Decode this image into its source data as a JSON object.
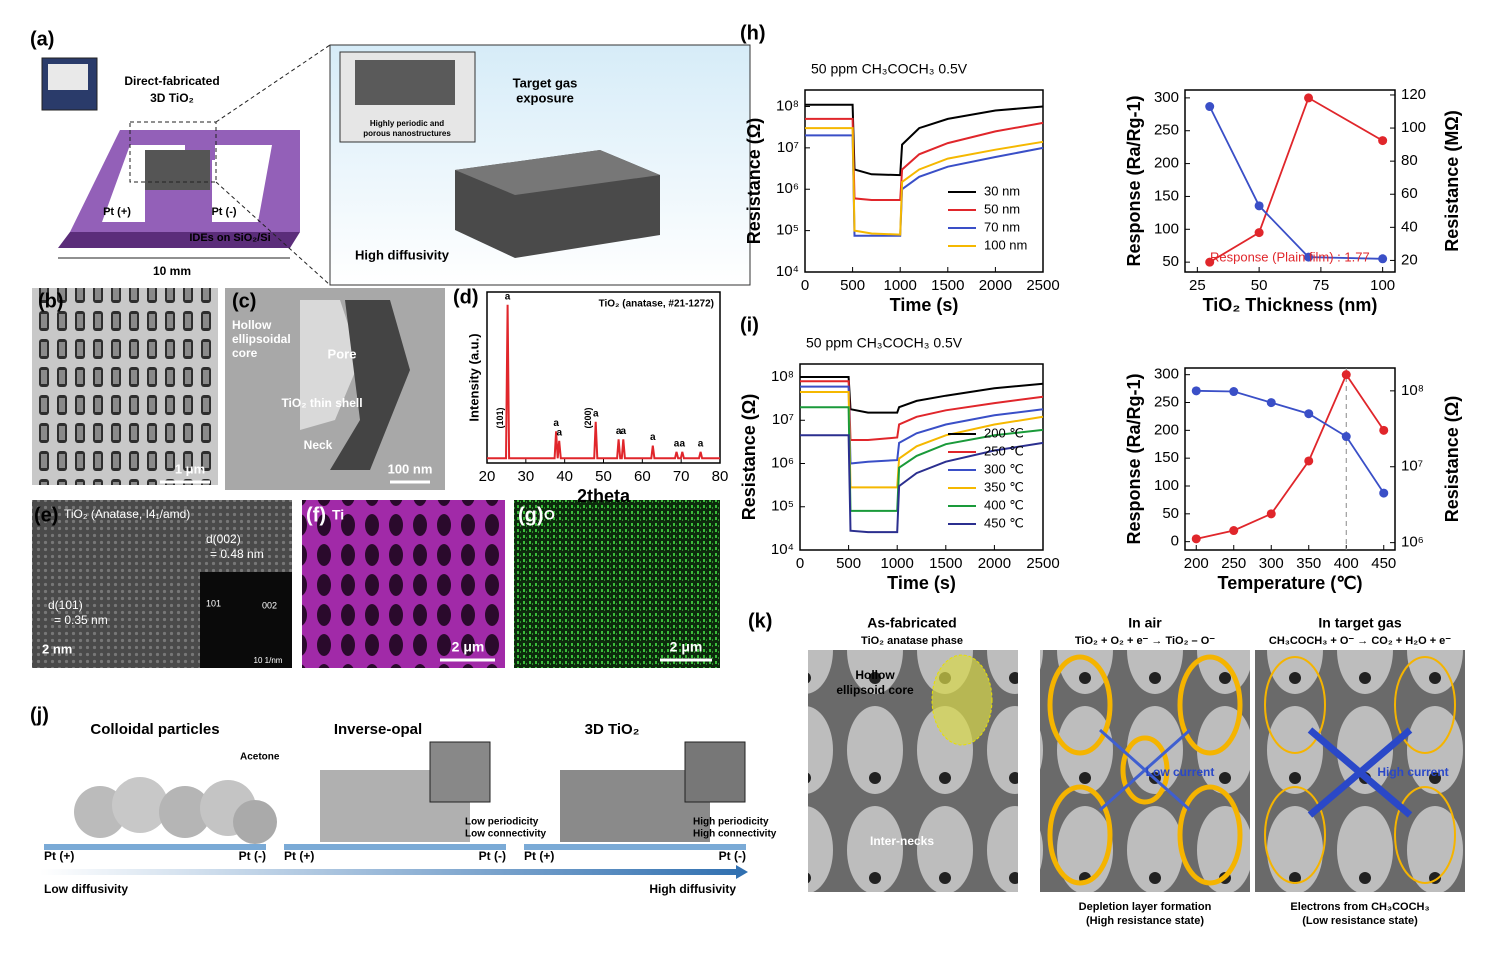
{
  "panels": {
    "a": {
      "label": "(a)",
      "device": [
        "Direct-fabricated",
        "3D TiO₂"
      ],
      "pt_plus": "Pt (+)",
      "pt_minus": "Pt (-)",
      "substrate": "IDEs on SiO₂/Si",
      "scale": "10 mm",
      "inset": [
        "Highly periodic and",
        "porous nanostructures"
      ],
      "gas": [
        "Target gas",
        "exposure"
      ],
      "diffusivity": "High diffusivity"
    },
    "b": {
      "label": "(b)",
      "scale": "1 μm"
    },
    "c": {
      "label": "(c)",
      "core": [
        "Hollow",
        "ellipsoidal",
        "core"
      ],
      "pore": "Pore",
      "shell": "TiO₂ thin shell",
      "neck": "Neck",
      "scale": "100 nm"
    },
    "d": {
      "label": "(d)"
    },
    "e": {
      "label": "(e)",
      "phase": "TiO₂ (Anatase, I4₁/amd)",
      "d002": [
        "d(002)",
        "= 0.48 nm"
      ],
      "d101": [
        "d(101)",
        "= 0.35 nm"
      ],
      "scale": "2 nm",
      "fft": [
        "002",
        "101",
        "10 1/nm"
      ]
    },
    "f": {
      "label": "(f)",
      "element": "Ti",
      "scale": "2 μm"
    },
    "g": {
      "label": "(g)",
      "element": "O",
      "scale": "2 μm"
    },
    "h": {
      "label": "(h)"
    },
    "i": {
      "label": "(i)"
    },
    "j": {
      "label": "(j)",
      "titles": [
        "Colloidal particles",
        "Inverse-opal",
        "3D TiO₂"
      ],
      "acetone": "Acetone",
      "low": [
        "Low periodicity",
        "Low connectivity"
      ],
      "high": [
        "High periodicity",
        "High connectivity"
      ],
      "electrodes": [
        "Pt (+)",
        "Pt (-)",
        "Pt (+)",
        "Pt (-)",
        "Pt (+)",
        "Pt (-)"
      ],
      "low_diffusivity": "Low diffusivity",
      "high_diffusivity": "High diffusivity"
    },
    "k": {
      "label": "(k)",
      "titles": [
        "As-fabricated",
        "In air",
        "In target gas"
      ],
      "subtitles": [
        "TiO₂ anatase phase",
        "TiO₂ + O₂ + e⁻ → TiO₂ – O⁻",
        "CH₃COCH₃ + O⁻ → CO₂ + H₂O + e⁻"
      ],
      "core": [
        "Hollow",
        "ellipsoid core"
      ],
      "necks": "Inter-necks",
      "low_current": "Low current",
      "high_current": "High current",
      "captions": [
        [
          "Depletion layer formation",
          "(High resistance state)"
        ],
        [
          "Electrons from CH₃COCH₃",
          "(Low resistance state)"
        ]
      ]
    }
  },
  "chart_data": [
    {
      "type": "line",
      "title": "TiO₂ (anatase, #21-1272)",
      "xlabel": "2theta",
      "ylabel": "Intensity (a.u.)",
      "x": [
        20,
        24.9,
        25.3,
        25.7,
        37.4,
        37.8,
        38.2,
        38.6,
        39.0,
        47.6,
        48.0,
        48.4,
        53.5,
        53.9,
        54.3,
        54.7,
        55.1,
        55.5,
        62.3,
        62.7,
        63.1,
        68.4,
        68.8,
        69.2,
        69.9,
        70.3,
        70.7,
        74.6,
        75.0,
        75.4,
        80
      ],
      "series": [
        {
          "color": "#e0262b",
          "values": [
            3,
            3,
            100,
            3,
            3,
            20,
            3,
            14,
            3,
            3,
            26,
            3,
            3,
            15,
            3,
            3,
            15,
            3,
            3,
            11,
            3,
            3,
            7,
            3,
            3,
            7,
            3,
            3,
            7,
            3,
            3
          ]
        }
      ],
      "xlim": [
        20,
        80
      ],
      "xticks": [
        20,
        30,
        40,
        50,
        60,
        70,
        80
      ],
      "ylim": [
        0,
        108
      ],
      "peak_labels": [
        {
          "x": 25.3,
          "label": "a"
        },
        {
          "x": 37.8,
          "label": "a"
        },
        {
          "x": 38.6,
          "label": "a"
        },
        {
          "x": 48.0,
          "label": "a"
        },
        {
          "x": 53.9,
          "label": "a"
        },
        {
          "x": 55.1,
          "label": "a"
        },
        {
          "x": 62.7,
          "label": "a"
        },
        {
          "x": 68.8,
          "label": "a"
        },
        {
          "x": 70.3,
          "label": "a"
        },
        {
          "x": 75.0,
          "label": "a"
        }
      ],
      "plane_labels": [
        {
          "x": 25.3,
          "label": "(101)"
        },
        {
          "x": 48.0,
          "label": "(200)"
        }
      ]
    },
    {
      "type": "line",
      "title": "50 ppm CH₃COCH₃ 0.5V",
      "xlabel": "Time (s)",
      "ylabel": "Resistance (Ω)",
      "x": [
        0,
        500,
        520,
        700,
        1000,
        1020,
        1200,
        1500,
        2000,
        2500
      ],
      "series": [
        {
          "name": "30 nm",
          "color": "#000000",
          "values": [
            110000000.0,
            110000000.0,
            3000000.0,
            2300000.0,
            2200000.0,
            12000000.0,
            30000000.0,
            50000000.0,
            80000000.0,
            100000000.0
          ]
        },
        {
          "name": "50 nm",
          "color": "#e0262b",
          "values": [
            50000000.0,
            50000000.0,
            600000.0,
            550000.0,
            550000.0,
            3000000.0,
            7000000.0,
            13000000.0,
            25000000.0,
            40000000.0
          ]
        },
        {
          "name": "70 nm",
          "color": "#3a4fc7",
          "values": [
            20000000.0,
            20000000.0,
            75000.0,
            75000.0,
            75000.0,
            1000000.0,
            2000000.0,
            3500000.0,
            6000000.0,
            10000000.0
          ]
        },
        {
          "name": "100 nm",
          "color": "#f5b800",
          "values": [
            30000000.0,
            30000000.0,
            100000.0,
            85000.0,
            80000.0,
            1500000.0,
            3000000.0,
            5500000.0,
            9000000.0,
            14000000.0
          ]
        }
      ],
      "xlim": [
        0,
        2500
      ],
      "xticks": [
        0,
        500,
        1000,
        1500,
        2000,
        2500
      ],
      "ylim": [
        10000,
        250000000
      ],
      "ylog": true,
      "yticks": [
        {
          "value": 10000,
          "label": "10⁴"
        },
        {
          "value": 100000,
          "label": "10⁵"
        },
        {
          "value": 1000000,
          "label": "10⁶"
        },
        {
          "value": 10000000,
          "label": "10⁷"
        },
        {
          "value": 100000000,
          "label": "10⁸"
        }
      ],
      "legend": "lower right"
    },
    {
      "type": "line",
      "xlabel": "TiO₂ Thickness (nm)",
      "ylabel": "Response (Ra/Rg-1)",
      "y2label": "Resistance (MΩ)",
      "x": [
        30,
        50,
        70,
        100
      ],
      "series": [
        {
          "color": "#e0262b",
          "values": [
            50,
            95,
            300,
            235
          ],
          "markers": true
        },
        {
          "color": "#3a4fc7",
          "values": [
            113,
            53,
            22,
            21
          ],
          "axis": "y2",
          "markers": true
        }
      ],
      "xlim": [
        20,
        105
      ],
      "xticks": [
        25,
        50,
        75,
        100
      ],
      "ylim": [
        35,
        312
      ],
      "yticks": [
        50,
        100,
        150,
        200,
        250,
        300
      ],
      "y2lim": [
        13,
        123
      ],
      "y2ticks": [
        20,
        40,
        60,
        80,
        100,
        120
      ],
      "note": "Response (Plain film) : 1.77",
      "note_color": "#e0262b"
    },
    {
      "type": "line",
      "title": "50 ppm CH₃COCH₃ 0.5V",
      "xlabel": "Time (s)",
      "ylabel": "Resistance (Ω)",
      "x": [
        0,
        500,
        520,
        700,
        1000,
        1020,
        1200,
        1500,
        2000,
        2500
      ],
      "series": [
        {
          "name": "200 ℃",
          "color": "#000000",
          "values": [
            100000000.0,
            100000000.0,
            18000000.0,
            15000000.0,
            15000000.0,
            20000000.0,
            28000000.0,
            37000000.0,
            55000000.0,
            70000000.0
          ]
        },
        {
          "name": "250 ℃",
          "color": "#e0262b",
          "values": [
            80000000.0,
            80000000.0,
            3500000.0,
            3500000.0,
            4000000.0,
            8000000.0,
            12000000.0,
            17000000.0,
            25000000.0,
            35000000.0
          ]
        },
        {
          "name": "300 ℃",
          "color": "#3a4fc7",
          "values": [
            60000000.0,
            60000000.0,
            1000000.0,
            1100000.0,
            1200000.0,
            3000000.0,
            5000000.0,
            8000000.0,
            13000000.0,
            18000000.0
          ]
        },
        {
          "name": "350 ℃",
          "color": "#f5b800",
          "values": [
            45000000.0,
            45000000.0,
            280000.0,
            280000.0,
            280000.0,
            1300000.0,
            2500000.0,
            4500000.0,
            8000000.0,
            12000000.0
          ]
        },
        {
          "name": "400 ℃",
          "color": "#1a9a3a",
          "values": [
            20000000.0,
            20000000.0,
            80000.0,
            80000.0,
            80000.0,
            800000.0,
            1500000.0,
            2800000.0,
            4500000.0,
            6000000.0
          ]
        },
        {
          "name": "450 ℃",
          "color": "#2b2f8f",
          "values": [
            4500000.0,
            4500000.0,
            28000.0,
            26000.0,
            26000.0,
            300000.0,
            600000.0,
            1100000.0,
            2000000.0,
            3000000.0
          ]
        }
      ],
      "xlim": [
        0,
        2500
      ],
      "xticks": [
        0,
        500,
        1000,
        1500,
        2000,
        2500
      ],
      "ylim": [
        10000,
        200000000
      ],
      "ylog": true,
      "yticks": [
        {
          "value": 10000,
          "label": "10⁴"
        },
        {
          "value": 100000,
          "label": "10⁵"
        },
        {
          "value": 1000000,
          "label": "10⁶"
        },
        {
          "value": 10000000,
          "label": "10⁷"
        },
        {
          "value": 100000000,
          "label": "10⁸"
        }
      ],
      "legend": "lower right"
    },
    {
      "type": "line",
      "xlabel": "Temperature (℃)",
      "ylabel": "Response (Ra/Rg-1)",
      "y2label": "Resistance (Ω)",
      "x": [
        200,
        250,
        300,
        350,
        400,
        450
      ],
      "series": [
        {
          "color": "#e0262b",
          "values": [
            5,
            20,
            50,
            145,
            300,
            200
          ],
          "markers": true
        },
        {
          "color": "#3a4fc7",
          "values": [
            100000000.0,
            98000000.0,
            70000000.0,
            50000000.0,
            25000000.0,
            4500000.0
          ],
          "axis": "y2",
          "markers": true
        }
      ],
      "xlim": [
        185,
        465
      ],
      "xticks": [
        200,
        250,
        300,
        350,
        400,
        450
      ],
      "ylim": [
        -15,
        312
      ],
      "yticks": [
        0,
        50,
        100,
        150,
        200,
        250,
        300
      ],
      "y2lim": [
        800000,
        200000000
      ],
      "y2log": true,
      "y2ticks": [
        {
          "value": 1000000,
          "label": "10⁶"
        },
        {
          "value": 10000000,
          "label": "10⁷"
        },
        {
          "value": 100000000,
          "label": "10⁸"
        }
      ],
      "reference_line": 400
    }
  ]
}
